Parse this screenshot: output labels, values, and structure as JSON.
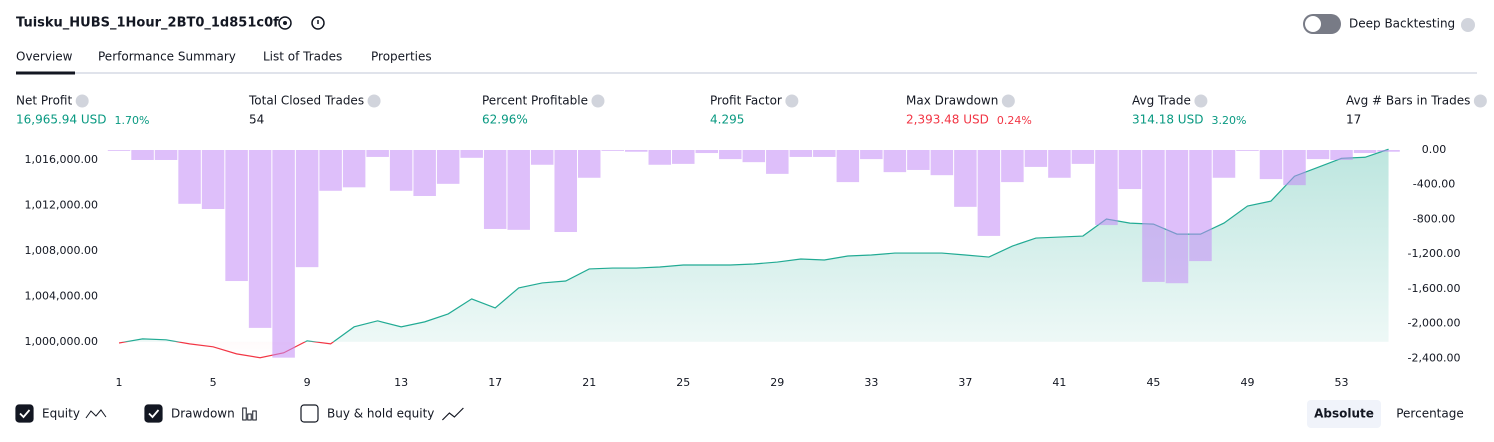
{
  "header": {
    "title": "Tuisku_HUBS_1Hour_2BT0_1d851c0f",
    "toggle": "Deep Backtesting"
  },
  "tabs": [
    "Overview",
    "Performance Summary",
    "List of Trades",
    "Properties"
  ],
  "metrics": [
    {
      "label": "Net Profit",
      "value": "16,965.94 USD",
      "pct": "1.70%",
      "color": "#089981"
    },
    {
      "label": "Total Closed Trades",
      "value": "54",
      "color": "#131722"
    },
    {
      "label": "Percent Profitable",
      "value": "62.96%",
      "color": "#089981"
    },
    {
      "label": "Profit Factor",
      "value": "4.295",
      "color": "#089981"
    },
    {
      "label": "Max Drawdown",
      "value": "2,393.48 USD",
      "pct": "0.24%",
      "color": "#f23645"
    },
    {
      "label": "Avg Trade",
      "value": "314.18 USD",
      "pct": "3.20%",
      "color": "#089981"
    },
    {
      "label": "Avg # Bars in Trades",
      "value": "17",
      "color": "#131722"
    }
  ],
  "chart_data": {
    "type": "equity-drawdown",
    "x": [
      1,
      2,
      3,
      4,
      5,
      6,
      7,
      8,
      9,
      10,
      11,
      12,
      13,
      14,
      15,
      16,
      17,
      18,
      19,
      20,
      21,
      22,
      23,
      24,
      25,
      26,
      27,
      28,
      29,
      30,
      31,
      32,
      33,
      34,
      35,
      36,
      37,
      38,
      39,
      40,
      41,
      42,
      43,
      44,
      45,
      46,
      47,
      48,
      49,
      50,
      51,
      52,
      53,
      54,
      55
    ],
    "xlim": [
      0.53,
      55.7
    ],
    "xticks": [
      1,
      5,
      9,
      13,
      17,
      21,
      25,
      29,
      33,
      37,
      41,
      45,
      49,
      53
    ],
    "ylim": [
      998400,
      1016900
    ],
    "yticks": [
      {
        "value": 1000000,
        "label": "1,000,000.00"
      },
      {
        "value": 1004000,
        "label": "1,004,000.00"
      },
      {
        "value": 1008000,
        "label": "1,008,000.00"
      },
      {
        "value": 1012000,
        "label": "1,012,000.00"
      },
      {
        "value": 1016000,
        "label": "1,016,000.00"
      }
    ],
    "y2lim": [
      -2420,
      0
    ],
    "y2ticks": [
      {
        "value": 0,
        "label": "0.00"
      },
      {
        "value": -400,
        "label": "-400.00"
      },
      {
        "value": -800,
        "label": "-800.00"
      },
      {
        "value": -1200,
        "label": "-1,200.00"
      },
      {
        "value": -1600,
        "label": "-1,600.00"
      },
      {
        "value": -2000,
        "label": "-2,000.00"
      },
      {
        "value": -2400,
        "label": "-2,400.00"
      }
    ],
    "series": [
      {
        "name": "Equity",
        "color": "#22ab94",
        "values": [
          999900,
          1000260,
          1000180,
          999820,
          999560,
          998940,
          998600,
          999030,
          1000090,
          999820,
          1001320,
          1001850,
          1001320,
          1001760,
          1002460,
          1003780,
          1002990,
          1004750,
          1005190,
          1005360,
          1006420,
          1006500,
          1006500,
          1006590,
          1006770,
          1006770,
          1006770,
          1006860,
          1007030,
          1007300,
          1007210,
          1007560,
          1007650,
          1007820,
          1007820,
          1007820,
          1007650,
          1007470,
          1008440,
          1009140,
          1009230,
          1009320,
          1010820,
          1010460,
          1010370,
          1009490,
          1009490,
          1010460,
          1011960,
          1012400,
          1014590,
          1015380,
          1016170,
          1016260,
          1016966
        ]
      },
      {
        "name": "Drawdown",
        "color": "#c38af5",
        "axis": "y2",
        "values": [
          -10,
          -115,
          -115,
          -620,
          -680,
          -1510,
          -2050,
          -2393,
          -1350,
          -470,
          -430,
          -80,
          -470,
          -530,
          -390,
          -90,
          -910,
          -920,
          -170,
          -945,
          -320,
          -10,
          -20,
          -170,
          -160,
          -35,
          -105,
          -140,
          -275,
          -80,
          -80,
          -370,
          -105,
          -255,
          -230,
          -290,
          -655,
          -990,
          -370,
          -195,
          -320,
          -160,
          -865,
          -450,
          -1520,
          -1535,
          -1280,
          -320,
          -10,
          -335,
          -405,
          -105,
          -115,
          -35,
          -20
        ]
      }
    ],
    "buy_hold": "Buy & hold equity",
    "modes": [
      "Absolute",
      "Percentage"
    ],
    "active_mode": 0
  }
}
